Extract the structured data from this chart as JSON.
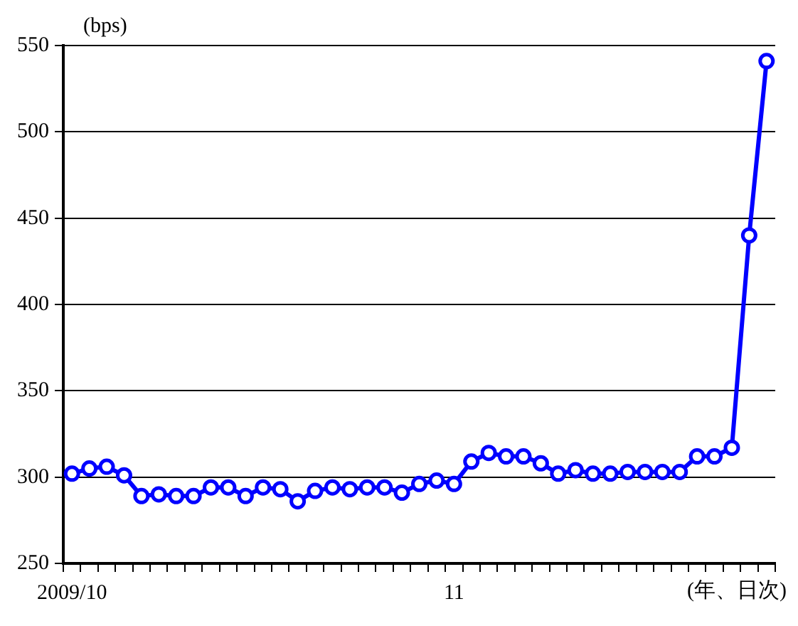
{
  "chart_data": {
    "type": "line",
    "ylabel": "(bps)",
    "xlabel": "(年、日次)",
    "categories": [
      "2009/10",
      null,
      null,
      null,
      null,
      null,
      null,
      null,
      null,
      null,
      null,
      null,
      null,
      null,
      null,
      null,
      null,
      null,
      null,
      null,
      null,
      null,
      "11",
      null,
      null,
      null,
      null,
      null,
      null,
      null,
      null,
      null,
      null,
      null,
      null,
      null,
      null,
      null,
      null,
      null,
      null
    ],
    "series": [
      {
        "color": "#0000ff",
        "values": [
          302,
          305,
          306,
          301,
          289,
          290,
          289,
          289,
          294,
          294,
          289,
          294,
          293,
          286,
          292,
          294,
          293,
          294,
          294,
          291,
          296,
          298,
          296,
          309,
          314,
          312,
          312,
          308,
          302,
          304,
          302,
          302,
          303,
          303,
          303,
          303,
          312,
          312,
          317,
          440,
          541
        ]
      }
    ],
    "ylim": [
      250,
      550
    ],
    "yticks": [
      250,
      300,
      350,
      400,
      450,
      500,
      550
    ],
    "grid": "y",
    "marker": "circle",
    "line_style": "solid",
    "legend": false
  }
}
